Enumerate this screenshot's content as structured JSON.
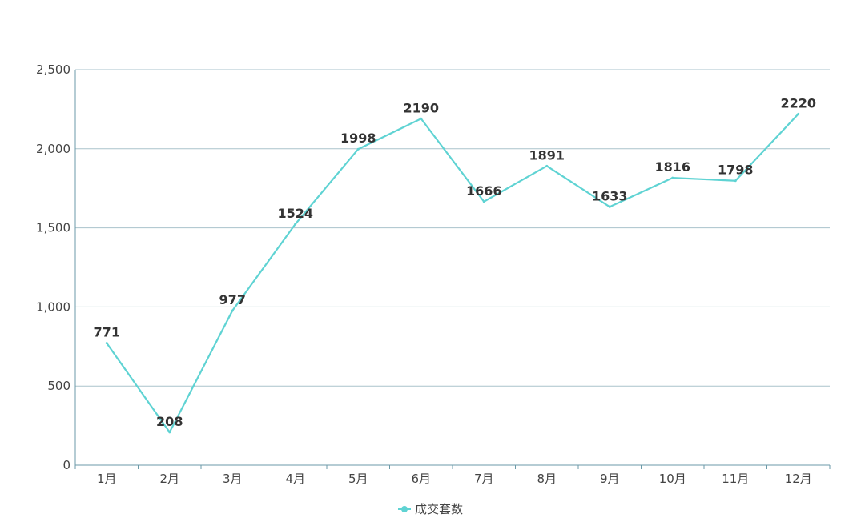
{
  "chart_data": {
    "type": "line",
    "categories": [
      "1月",
      "2月",
      "3月",
      "4月",
      "5月",
      "6月",
      "7月",
      "8月",
      "9月",
      "10月",
      "11月",
      "12月"
    ],
    "series": [
      {
        "name": "成交套数",
        "values": [
          771,
          208,
          977,
          1524,
          1998,
          2190,
          1666,
          1891,
          1633,
          1816,
          1798,
          2220
        ]
      }
    ],
    "title": "",
    "xlabel": "",
    "ylabel": "",
    "ylim": [
      0,
      2500
    ],
    "yticks": [
      0,
      500,
      1000,
      1500,
      2000,
      2500
    ],
    "ytick_labels": [
      "0",
      "500",
      "1,000",
      "1,500",
      "2,000",
      "2,500"
    ],
    "grid": true,
    "legend_position": "bottom-center",
    "colors": {
      "series": "#5fd3d3",
      "grid": "#aac3cc",
      "axis": "#6b9aa8"
    }
  }
}
